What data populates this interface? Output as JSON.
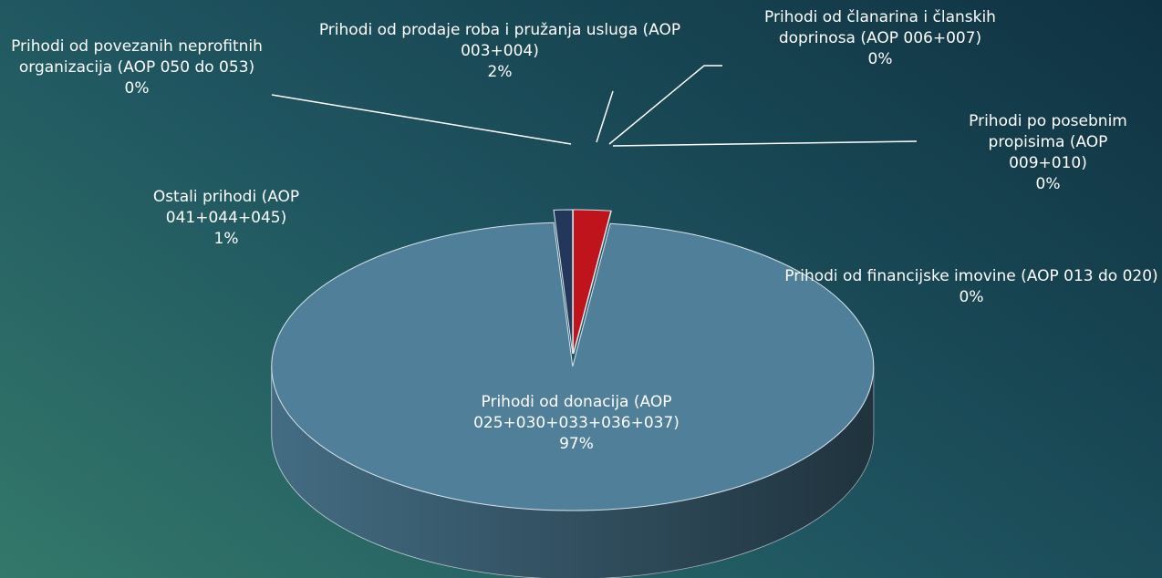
{
  "chart_data": {
    "type": "pie",
    "categories": [
      "Prihodi od prodaje roba i pružanja usluga (AOP 003+004)",
      "Prihodi od članarina i članskih doprinosa (AOP 006+007)",
      "Prihodi po posebnim propisima (AOP 009+010)",
      "Prihodi od financijske imovine (AOP 013 do 020)",
      "Prihodi od donacija (AOP 025+030+033+036+037)",
      "Ostali prihodi (AOP 041+044+045)",
      "Prihodi od povezanih neprofitnih organizacija (AOP 050 do 053)"
    ],
    "values": [
      2,
      0,
      0,
      0,
      97,
      1,
      0
    ],
    "value_labels": [
      "2%",
      "0%",
      "0%",
      "0%",
      "97%",
      "1%",
      "0%"
    ],
    "colors": [
      "#c0141c",
      "#e46c0a",
      "#6a9a78",
      "#4d8a8a",
      "#4f7f99",
      "#22375a",
      "#a052a0"
    ]
  }
}
